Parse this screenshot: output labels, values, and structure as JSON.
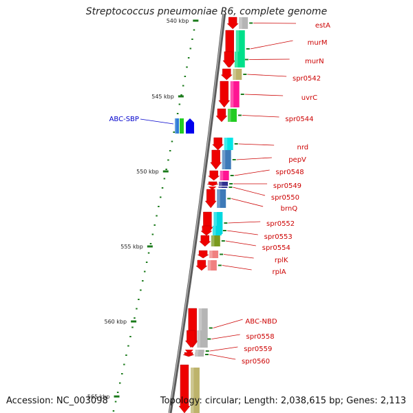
{
  "title": "Streptococcus pneumoniae R6, complete genome",
  "accession": "Accession: NC_003098",
  "topology": "Topology: circular; Length: 2,038,615 bp; Genes: 2,113",
  "colors": {
    "gene_label": "#cc0000",
    "abc_label": "#0000cc",
    "tick": "#1a7a1a",
    "backbone": "#777777"
  },
  "kbp_labels": [
    "540 kbp",
    "545 kbp",
    "550 kbp",
    "555 kbp",
    "560 kbp",
    "565 kbp"
  ],
  "genes": [
    {
      "name": "estA",
      "strand": "-",
      "func_color": "#b5b5b5"
    },
    {
      "name": "murM",
      "strand": "-",
      "func_color": "#00e08a"
    },
    {
      "name": "murN",
      "strand": "-",
      "func_color": "#00e08a"
    },
    {
      "name": "spr0542",
      "strand": "-",
      "func_color": "#bdb36b"
    },
    {
      "name": "uvrC",
      "strand": "-",
      "func_color": "#ff1493"
    },
    {
      "name": "spr0544",
      "strand": "-",
      "func_color": "#22cc22"
    },
    {
      "name": "ABC-SBP",
      "strand": "+",
      "func_color": "#2e7bd6"
    },
    {
      "name": "nrd",
      "strand": "-",
      "func_color": "#00e6e6"
    },
    {
      "name": "pepV",
      "strand": "-",
      "func_color": "#3d7ab8"
    },
    {
      "name": "spr0548",
      "strand": "-",
      "func_color": "#ff1493"
    },
    {
      "name": "spr0549",
      "strand": "-",
      "func_color": "#303090"
    },
    {
      "name": "spr0550",
      "strand": "-",
      "func_color": "#303090"
    },
    {
      "name": "brnQ",
      "strand": "-",
      "func_color": "#3d7ab8"
    },
    {
      "name": "spr0552",
      "strand": "-",
      "func_color": "#00d8e0"
    },
    {
      "name": "spr0553",
      "strand": "-",
      "func_color": "#00d8e0"
    },
    {
      "name": "spr0554",
      "strand": "-",
      "func_color": "#7a9a1e"
    },
    {
      "name": "rplK",
      "strand": "-",
      "func_color": "#f08080"
    },
    {
      "name": "rplA",
      "strand": "-",
      "func_color": "#f08080"
    },
    {
      "name": "ABC-NBD",
      "strand": "-",
      "func_color": "#b5b5b5"
    },
    {
      "name": "spr0558",
      "strand": "-",
      "func_color": "#b5b5b5"
    },
    {
      "name": "spr0559",
      "strand": "-",
      "func_color": "#b5b5b5"
    },
    {
      "name": "spr0560",
      "strand": "-",
      "func_color": "#b5b5b5"
    }
  ]
}
